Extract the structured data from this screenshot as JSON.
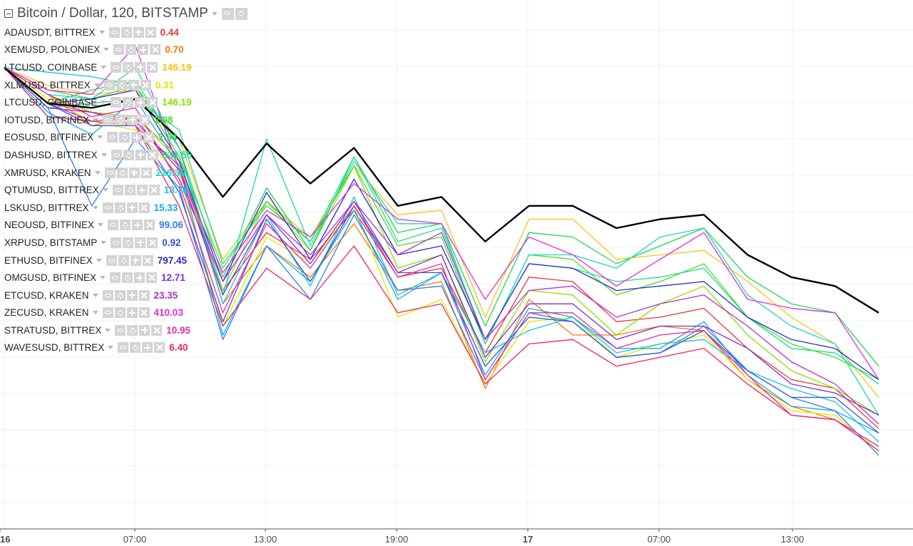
{
  "header": {
    "title": "Bitcoin / Dollar, 120, BITSTAMP"
  },
  "legend": [
    {
      "label": "ADAUSDT, BITTREX",
      "value": "0.44",
      "color": "#e53935"
    },
    {
      "label": "XEMUSD, POLONIEX",
      "value": "0.70",
      "color": "#f57c00"
    },
    {
      "label": "LTCUSD, COINBASE",
      "value": "146.19",
      "color": "#f9c11a"
    },
    {
      "label": "XLMUSD, BITTREX",
      "value": "0.31",
      "color": "#e6e600"
    },
    {
      "label": "LTCUSD, COINBASE",
      "value": "146.19",
      "color": "#8be000"
    },
    {
      "label": "IOTUSD, BITFINEX",
      "value": "2.08",
      "color": "#4cdc2a"
    },
    {
      "label": "EOSUSD, BITFINEX",
      "value": "7.94",
      "color": "#22d64e"
    },
    {
      "label": "DASHUSD, BITTREX",
      "value": "632.55",
      "color": "#1fdc8a"
    },
    {
      "label": "XMRUSD, KRAKEN",
      "value": "226.30",
      "color": "#1ad6c2"
    },
    {
      "label": "QTUMUSD, BITTREX",
      "value": "13.78",
      "color": "#17c4e8"
    },
    {
      "label": "LSKUSD, BITTREX",
      "value": "15.33",
      "color": "#14a8f0"
    },
    {
      "label": "NEOUSD, BITFINEX",
      "value": "99.06",
      "color": "#2f7fe8"
    },
    {
      "label": "XRPUSD, BITSTAMP",
      "value": "0.92",
      "color": "#3453d9"
    },
    {
      "label": "ETHUSD, BITFINEX",
      "value": "797.45",
      "color": "#2b2bcc"
    },
    {
      "label": "OMGUSD, BITFINEX",
      "value": "12.71",
      "color": "#7b2fd6"
    },
    {
      "label": "ETCUSD, KRAKEN",
      "value": "23.35",
      "color": "#b62ed6"
    },
    {
      "label": "ZECUSD, KRAKEN",
      "value": "410.03",
      "color": "#e02be0"
    },
    {
      "label": "STRATUSD, BITTREX",
      "value": "10.95",
      "color": "#e82aa8"
    },
    {
      "label": "WAVESUSD, BITTREX",
      "value": "6.40",
      "color": "#ee2366"
    }
  ],
  "axis": {
    "ticks": [
      {
        "label": "16",
        "bold": true
      },
      {
        "label": "07:00",
        "bold": false
      },
      {
        "label": "13:00",
        "bold": false
      },
      {
        "label": "19:00",
        "bold": false
      },
      {
        "label": "17",
        "bold": true
      },
      {
        "label": "07:00",
        "bold": false
      },
      {
        "label": "13:00",
        "bold": false
      }
    ]
  },
  "chart_data": {
    "type": "line",
    "title": "Bitcoin / Dollar, 120, BITSTAMP",
    "xlabel": "",
    "ylabel": "",
    "x_note": "2-hour bars spanning day 16 ~01:00 to day 17 ~19:00",
    "ylim": [
      -100,
      5
    ],
    "grid": true,
    "legend_position": "top-left",
    "main_series": {
      "name": "Bitcoin / Dollar, 120, BITSTAMP",
      "color": "#000000",
      "values": [
        0,
        -8,
        -9,
        -7,
        -16,
        -29,
        -17,
        -26,
        -18,
        -31,
        -29,
        -39,
        -31,
        -31,
        -36,
        -34,
        -33,
        -42,
        -47,
        -49,
        -55
      ]
    },
    "series": [
      {
        "name": "ADAUSDT, BITTREX",
        "color": "#e53935",
        "values": [
          0,
          -8,
          -10,
          -13,
          -22,
          -50,
          -37,
          -43,
          -32,
          -47,
          -45,
          -64,
          -47,
          -48,
          -57,
          -56,
          -54,
          -63,
          -70,
          -72,
          -81
        ]
      },
      {
        "name": "XEMUSD, POLONIEX",
        "color": "#f57c00",
        "values": [
          0,
          -6,
          -13,
          -11,
          -20,
          -53,
          -40,
          -47,
          -35,
          -50,
          -48,
          -72,
          -52,
          -60,
          -60,
          -58,
          -59,
          -70,
          -76,
          -79,
          -85
        ]
      },
      {
        "name": "LTCUSD, COINBASE",
        "color": "#f9c11a",
        "values": [
          0,
          -4,
          -6,
          -5,
          -16,
          -43,
          -30,
          -38,
          -22,
          -33,
          -32,
          -56,
          -34,
          -34,
          -43,
          -42,
          -41,
          -48,
          -56,
          -62,
          -74
        ]
      },
      {
        "name": "XLMUSD, BITTREX",
        "color": "#e6e600",
        "values": [
          0,
          -7,
          -12,
          -14,
          -24,
          -58,
          -38,
          -44,
          -31,
          -56,
          -52,
          -71,
          -57,
          -56,
          -65,
          -62,
          -60,
          -70,
          -77,
          -78,
          -86
        ]
      },
      {
        "name": "LTCUSD, COINBASE",
        "color": "#8be000",
        "values": [
          0,
          -6,
          -10,
          -11,
          -21,
          -50,
          -30,
          -41,
          -22,
          -45,
          -42,
          -66,
          -50,
          -51,
          -60,
          -53,
          -49,
          -60,
          -68,
          -72,
          -78
        ]
      },
      {
        "name": "IOTUSD, BITFINEX",
        "color": "#4cdc2a",
        "values": [
          0,
          -5,
          -7,
          -4,
          -20,
          -45,
          -30,
          -39,
          -22,
          -40,
          -38,
          -62,
          -42,
          -43,
          -51,
          -48,
          -44,
          -56,
          -62,
          -65,
          -70
        ]
      },
      {
        "name": "EOSUSD, BITFINEX",
        "color": "#22d64e",
        "values": [
          0,
          -8,
          -5,
          -3,
          -18,
          -47,
          -27,
          -41,
          -20,
          -37,
          -35,
          -58,
          -37,
          -38,
          -44,
          -40,
          -36,
          -47,
          -53,
          -55,
          -67
        ]
      },
      {
        "name": "DASHUSD, BITTREX",
        "color": "#1fdc8a",
        "values": [
          0,
          -9,
          -8,
          -7,
          -14,
          -44,
          -31,
          -39,
          -20,
          -39,
          -36,
          -61,
          -44,
          -45,
          -48,
          -47,
          -45,
          -56,
          -63,
          -64,
          -71
        ]
      },
      {
        "name": "XMRUSD, KRAKEN",
        "color": "#1ad6c2",
        "values": [
          0,
          -6,
          -7,
          0,
          -18,
          -51,
          -16,
          -40,
          -21,
          -35,
          -35,
          -62,
          -42,
          -42,
          -45,
          -38,
          -36,
          -51,
          -58,
          -62,
          -78
        ]
      },
      {
        "name": "QTUMUSD, BITTREX",
        "color": "#17c4e8",
        "values": [
          0,
          -1,
          -2,
          -4,
          -18,
          -53,
          -33,
          -49,
          -29,
          -51,
          -46,
          -64,
          -59,
          -56,
          -64,
          -62,
          -61,
          -68,
          -72,
          -75,
          -84
        ]
      },
      {
        "name": "LSKUSD, BITTREX",
        "color": "#14a8f0",
        "values": [
          0,
          -10,
          -15,
          -7,
          -22,
          -60,
          -40,
          -48,
          -32,
          -52,
          -46,
          -69,
          -54,
          -56,
          -63,
          -63,
          -57,
          -69,
          -76,
          -77,
          -82
        ]
      },
      {
        "name": "NEOUSD, BITFINEX",
        "color": "#2f7fe8",
        "values": [
          0,
          -9,
          -31,
          -16,
          -27,
          -61,
          -40,
          -52,
          -33,
          -50,
          -49,
          -70,
          -55,
          -57,
          -65,
          -64,
          -58,
          -68,
          -74,
          -77,
          -87
        ]
      },
      {
        "name": "XRPUSD, BITSTAMP",
        "color": "#3453d9",
        "values": [
          0,
          -8,
          -13,
          -13,
          -28,
          -57,
          -34,
          -48,
          -31,
          -46,
          -46,
          -67,
          -56,
          -57,
          -65,
          -64,
          -59,
          -68,
          -74,
          -74,
          -82
        ]
      },
      {
        "name": "ETHUSD, BITFINEX",
        "color": "#2b2bcc",
        "values": [
          0,
          -8,
          -7,
          -5,
          -21,
          -48,
          -28,
          -43,
          -25,
          -42,
          -40,
          -61,
          -44,
          -45,
          -50,
          -49,
          -48,
          -56,
          -61,
          -63,
          -70
        ]
      },
      {
        "name": "OMGUSD, BITFINEX",
        "color": "#7b2fd6",
        "values": [
          0,
          -9,
          -10,
          -12,
          -23,
          -51,
          -33,
          -44,
          -30,
          -46,
          -42,
          -65,
          -53,
          -53,
          -61,
          -58,
          -58,
          -63,
          -71,
          -73,
          -78
        ]
      },
      {
        "name": "ETCUSD, KRAKEN",
        "color": "#b62ed6",
        "values": [
          0,
          -8,
          -12,
          -11,
          -25,
          -48,
          -33,
          -42,
          -30,
          -42,
          -37,
          -61,
          -50,
          -49,
          -56,
          -53,
          -51,
          -58,
          -66,
          -71,
          -80
        ]
      },
      {
        "name": "ZECUSD, KRAKEN",
        "color": "#e02be0",
        "values": [
          0,
          -5,
          -6,
          5,
          -23,
          -46,
          -32,
          -38,
          -26,
          -34,
          -35,
          -52,
          -38,
          -42,
          -49,
          -43,
          -37,
          -52,
          -54,
          -55,
          -70
        ]
      },
      {
        "name": "STRATUSD, BITTREX",
        "color": "#e82aa8",
        "values": [
          0,
          -6,
          -11,
          -9,
          -26,
          -55,
          -35,
          -45,
          -31,
          -47,
          -44,
          -70,
          -55,
          -55,
          -63,
          -60,
          -59,
          -69,
          -78,
          -79,
          -85
        ]
      },
      {
        "name": "WAVESUSD, BITTREX",
        "color": "#ee2366",
        "values": [
          0,
          -11,
          -12,
          -13,
          -31,
          -58,
          -45,
          -52,
          -40,
          -55,
          -53,
          -71,
          -62,
          -61,
          -67,
          -65,
          -63,
          -71,
          -78,
          -79,
          -86
        ]
      }
    ]
  }
}
